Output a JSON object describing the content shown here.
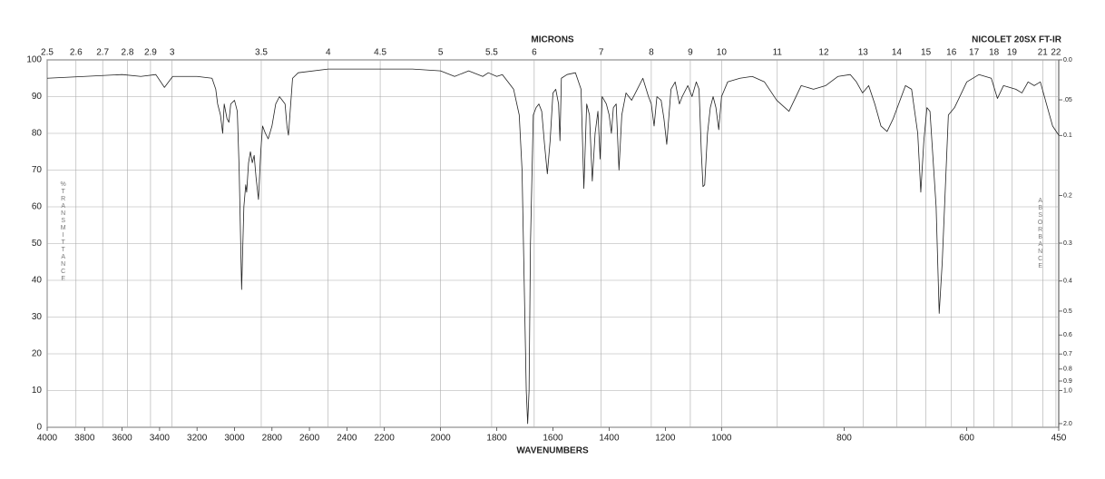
{
  "chart_data": {
    "type": "line",
    "subtitle": "NICOLET 20SX FT-IR",
    "x2label": "MICRONS",
    "xlabel": "WAVENUMBERS",
    "ylabel": "%TRANSMITTANCE",
    "y2label": "ABSORBANCE",
    "xlim": [
      4000,
      450
    ],
    "x_scale_breaks": [
      2200,
      1000
    ],
    "xticks": [
      4000,
      3800,
      3600,
      3400,
      3200,
      3000,
      2800,
      2600,
      2400,
      2200,
      2000,
      1800,
      1600,
      1400,
      1200,
      1000,
      800,
      600,
      450
    ],
    "x2scale": "reciprocal",
    "x2ticks": [
      2.5,
      2.6,
      2.7,
      2.8,
      2.9,
      3,
      3.5,
      4,
      4.5,
      5,
      5.5,
      6,
      7,
      8,
      9,
      10,
      11,
      12,
      13,
      14,
      15,
      16,
      17,
      18,
      19,
      21,
      22
    ],
    "ylim": [
      0,
      100
    ],
    "yticks": [
      0,
      10,
      20,
      30,
      40,
      50,
      60,
      70,
      80,
      90,
      100
    ],
    "y2scale": "absorbance",
    "y2ticks": [
      {
        "value": 0,
        "label": "0.0"
      },
      {
        "value": 0.05,
        "label": ".05"
      },
      0.1,
      0.2,
      0.3,
      0.4,
      0.5,
      0.6,
      0.7,
      0.8,
      0.9,
      {
        "value": 1,
        "label": "1.0"
      },
      {
        "value": 2,
        "label": "2.0"
      }
    ],
    "grid": true,
    "color": "#222222",
    "x": [
      4000,
      3800,
      3600,
      3500,
      3420,
      3374,
      3330,
      3200,
      3120,
      3100,
      3090,
      3075,
      3063,
      3055,
      3040,
      3030,
      3020,
      3000,
      2985,
      2975,
      2962,
      2950,
      2940,
      2935,
      2925,
      2915,
      2905,
      2895,
      2885,
      2872,
      2860,
      2850,
      2835,
      2820,
      2800,
      2780,
      2760,
      2745,
      2730,
      2720,
      2712,
      2700,
      2690,
      2660,
      2500,
      2300,
      2200,
      2100,
      2000,
      1950,
      1900,
      1850,
      1830,
      1800,
      1780,
      1760,
      1740,
      1720,
      1710,
      1700,
      1695,
      1690,
      1685,
      1680,
      1670,
      1660,
      1650,
      1640,
      1630,
      1620,
      1610,
      1600,
      1590,
      1580,
      1575,
      1570,
      1550,
      1520,
      1500,
      1490,
      1480,
      1470,
      1460,
      1450,
      1440,
      1432,
      1425,
      1410,
      1400,
      1392,
      1385,
      1375,
      1365,
      1355,
      1340,
      1320,
      1300,
      1280,
      1260,
      1250,
      1240,
      1230,
      1215,
      1205,
      1195,
      1180,
      1165,
      1150,
      1140,
      1120,
      1105,
      1090,
      1080,
      1072,
      1066,
      1060,
      1050,
      1040,
      1030,
      1020,
      1010,
      1000,
      990,
      970,
      950,
      930,
      910,
      890,
      870,
      850,
      830,
      810,
      790,
      780,
      770,
      760,
      750,
      740,
      730,
      720,
      700,
      690,
      680,
      675,
      670,
      665,
      660,
      650,
      645,
      640,
      630,
      620,
      600,
      580,
      560,
      550,
      540,
      520,
      510,
      500,
      490,
      480,
      470,
      460,
      450
    ],
    "values": [
      95,
      95.5,
      96,
      95.5,
      96,
      92.5,
      95.5,
      95.5,
      95,
      92,
      88,
      85,
      80,
      88,
      84,
      83,
      88,
      89,
      86,
      70,
      37.5,
      60,
      66,
      64,
      72,
      75,
      72,
      74,
      68,
      62,
      75,
      82,
      80,
      78.5,
      82,
      88,
      90,
      89,
      88,
      82,
      79.5,
      88,
      95,
      96.5,
      97.5,
      97.5,
      97.5,
      97.5,
      97,
      95.5,
      97,
      95.5,
      96.5,
      95.5,
      96,
      94,
      92,
      85,
      70,
      30,
      10,
      1,
      10,
      50,
      85,
      87,
      88,
      86,
      77,
      69,
      78,
      91,
      92,
      88,
      78,
      95,
      96,
      96.5,
      92,
      65,
      88,
      85,
      67,
      80,
      86,
      73,
      90,
      88,
      85,
      80,
      87,
      88,
      70,
      85,
      91,
      89,
      92,
      95,
      90,
      88,
      82,
      90,
      89,
      84,
      77,
      92,
      94,
      88,
      90,
      93,
      90,
      94,
      92,
      75,
      65.5,
      66,
      80,
      87,
      90,
      87,
      81,
      90,
      94,
      95,
      95.5,
      94,
      89,
      86,
      93,
      92,
      93,
      95.5,
      96,
      94,
      91,
      93,
      88,
      82,
      80.5,
      84,
      93,
      92,
      80,
      64,
      78,
      87,
      86,
      60,
      31,
      45,
      85,
      87,
      94,
      96,
      95,
      89.5,
      93,
      92,
      91,
      94,
      93,
      94,
      88,
      82,
      79.5
    ]
  }
}
